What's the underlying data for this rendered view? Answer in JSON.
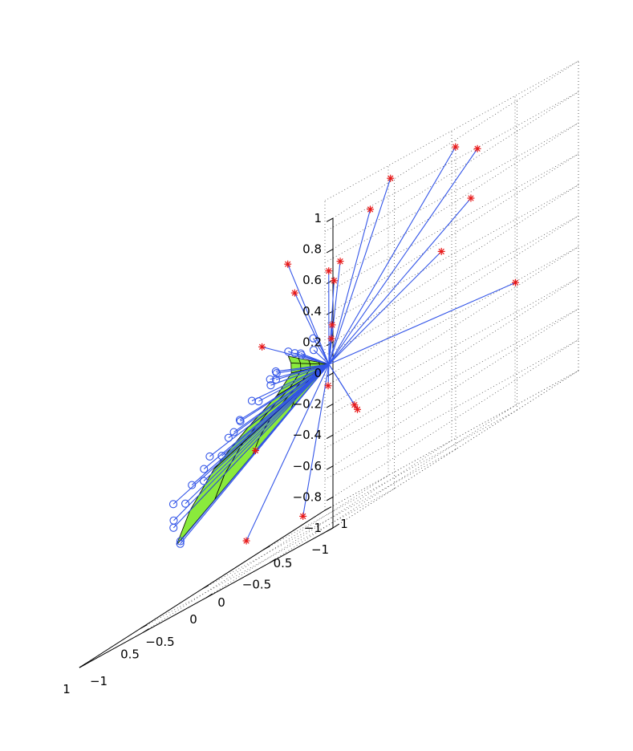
{
  "chart_data": {
    "type": "scatter",
    "subtype": "3d-scatter-with-rays-and-surface",
    "title": "",
    "xlabel": "",
    "ylabel": "",
    "zlabel": "",
    "axes": {
      "x": {
        "range": [
          -1,
          1
        ],
        "ticks": [
          -1,
          -0.5,
          0,
          0.5,
          1
        ],
        "tick_labels": [
          "−1",
          "−0.5",
          "0",
          "0.5",
          "1"
        ]
      },
      "y": {
        "range": [
          -1,
          1
        ],
        "ticks": [
          1,
          0.5,
          0,
          -0.5,
          -1
        ],
        "tick_labels": [
          "1",
          "0.5",
          "0",
          "−0.5",
          "−1"
        ]
      },
      "z": {
        "range": [
          -1,
          1
        ],
        "ticks": [
          -1,
          -0.8,
          -0.6,
          -0.4,
          -0.2,
          0,
          0.2,
          0.4,
          0.6,
          0.8,
          1
        ],
        "tick_labels": [
          "−1",
          "−0.8",
          "−0.6",
          "−0.4",
          "−0.2",
          "0",
          "0.2",
          "0.4",
          "0.6",
          "0.8",
          "1"
        ]
      }
    },
    "grid": true,
    "legend": "none",
    "origin": [
      0,
      0,
      0
    ],
    "colors": {
      "rays": "#3355e8",
      "star_markers": "#e81818",
      "circle_markers": "#3355e8",
      "surface_fill": "#8aea3c",
      "surface_edges": "#000000",
      "grid": "#555555"
    },
    "star_points": [
      [
        -0.5,
        0.4,
        0.3
      ],
      [
        0.25,
        0.35,
        0.6
      ],
      [
        -0.05,
        0.45,
        0.95
      ],
      [
        -0.2,
        0.95,
        0.5
      ],
      [
        0.2,
        0.2,
        -0.15
      ],
      [
        0.05,
        0.05,
        0.6
      ],
      [
        -0.25,
        -0.05,
        -0.35
      ],
      [
        0.35,
        0.15,
        -0.9
      ],
      [
        -0.3,
        0.9,
        0.8
      ],
      [
        -0.8,
        -0.8,
        0.3
      ],
      [
        0.55,
        0.8,
        -0.45
      ],
      [
        0.7,
        0.05,
        -0.85
      ],
      [
        -0.6,
        0.9,
        -0.2
      ],
      [
        -0.95,
        0.05,
        0.95
      ],
      [
        -0.6,
        -0.6,
        0.2
      ],
      [
        0.4,
        0.75,
        0.8
      ],
      [
        -0.05,
        -0.65,
        -0.25
      ],
      [
        -0.45,
        -0.8,
        0.85
      ],
      [
        -0.65,
        -0.95,
        0.65
      ],
      [
        0.25,
        0.3,
        0.5
      ],
      [
        -0.15,
        -0.7,
        0.4
      ]
    ],
    "circle_points": [
      [
        0.3,
        -0.9,
        -0.55
      ],
      [
        0.35,
        -0.85,
        -0.57
      ],
      [
        0.45,
        -0.8,
        -0.4
      ],
      [
        0.5,
        -0.75,
        -0.45
      ],
      [
        0.55,
        -0.7,
        -0.3
      ],
      [
        0.6,
        -0.55,
        -0.35
      ],
      [
        0.5,
        -0.6,
        -0.25
      ],
      [
        0.55,
        -0.45,
        -0.2
      ],
      [
        0.6,
        -0.4,
        -0.28
      ],
      [
        0.65,
        -0.3,
        -0.15
      ],
      [
        0.55,
        -0.25,
        -0.1
      ],
      [
        0.7,
        -0.15,
        -0.2
      ],
      [
        0.65,
        -0.05,
        -0.05
      ],
      [
        0.75,
        0.0,
        -0.1
      ],
      [
        0.7,
        0.15,
        0.0
      ],
      [
        0.8,
        0.1,
        -0.05
      ],
      [
        0.75,
        0.3,
        0.05
      ],
      [
        0.85,
        0.25,
        0.02
      ],
      [
        0.8,
        0.4,
        0.1
      ],
      [
        0.7,
        0.5,
        0.12
      ],
      [
        0.9,
        0.45,
        0.08
      ],
      [
        0.85,
        0.6,
        0.15
      ],
      [
        0.75,
        0.65,
        0.1
      ],
      [
        0.95,
        0.55,
        0.05
      ],
      [
        0.9,
        0.7,
        0.12
      ],
      [
        0.95,
        0.65,
        0.18
      ],
      [
        0.85,
        0.75,
        0.17
      ],
      [
        1.0,
        0.6,
        0.1
      ]
    ],
    "surface": {
      "rows": [
        [
          [
            0,
            0,
            0
          ],
          [
            0,
            0,
            0
          ],
          [
            0,
            0,
            0
          ],
          [
            0,
            0,
            0
          ],
          [
            0,
            0,
            0
          ],
          [
            0,
            0,
            0
          ],
          [
            0,
            0,
            0
          ],
          [
            0,
            0,
            0
          ]
        ],
        [
          [
            0.0825,
            -0.225,
            -0.14
          ],
          [
            0.1,
            -0.18,
            -0.1
          ],
          [
            0.13,
            -0.1,
            -0.06
          ],
          [
            0.16,
            0.0,
            -0.03
          ],
          [
            0.18,
            0.08,
            -0.01
          ],
          [
            0.2,
            0.13,
            0.01
          ],
          [
            0.22,
            0.15,
            0.025
          ],
          [
            0.2375,
            0.1625,
            0.0375
          ]
        ],
        [
          [
            0.165,
            -0.45,
            -0.28
          ],
          [
            0.2,
            -0.36,
            -0.2
          ],
          [
            0.26,
            -0.2,
            -0.12
          ],
          [
            0.32,
            0.0,
            -0.06
          ],
          [
            0.36,
            0.16,
            -0.02
          ],
          [
            0.4,
            0.26,
            0.02
          ],
          [
            0.44,
            0.3,
            0.05
          ],
          [
            0.475,
            0.325,
            0.075
          ]
        ],
        [
          [
            0.2475,
            -0.675,
            -0.42
          ],
          [
            0.3,
            -0.54,
            -0.3
          ],
          [
            0.39,
            -0.3,
            -0.18
          ],
          [
            0.48,
            0.0,
            -0.09
          ],
          [
            0.54,
            0.24,
            -0.03
          ],
          [
            0.6,
            0.39,
            0.03
          ],
          [
            0.66,
            0.45,
            0.075
          ],
          [
            0.7125,
            0.4875,
            0.1125
          ]
        ],
        [
          [
            0.33,
            -0.9,
            -0.56
          ],
          [
            0.4,
            -0.72,
            -0.4
          ],
          [
            0.52,
            -0.4,
            -0.24
          ],
          [
            0.64,
            0.0,
            -0.12
          ],
          [
            0.72,
            0.32,
            -0.04
          ],
          [
            0.8,
            0.52,
            0.04
          ],
          [
            0.88,
            0.6,
            0.1
          ],
          [
            0.95,
            0.65,
            0.15
          ]
        ]
      ]
    }
  }
}
